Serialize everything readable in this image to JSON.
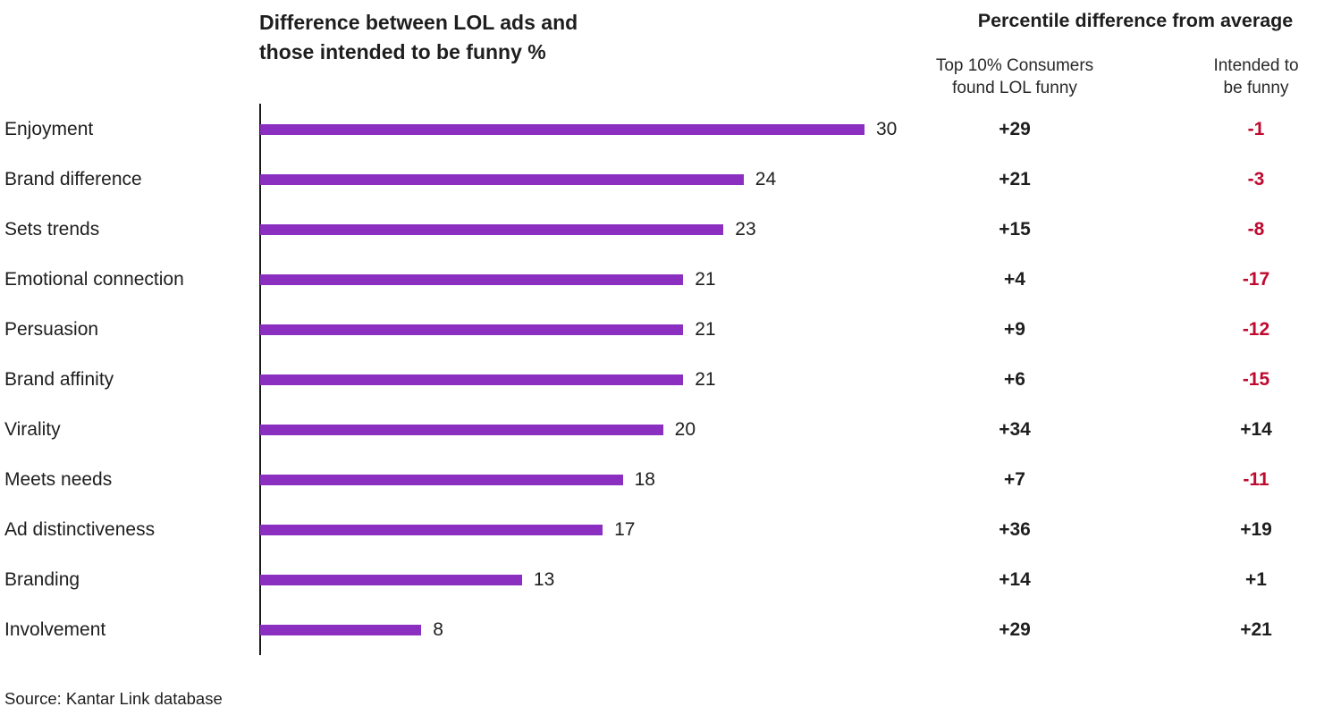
{
  "titles": {
    "left": "Difference between LOL ads and\nthose intended to be funny %",
    "right": "Percentile difference from average",
    "col1": "Top 10% Consumers\nfound LOL funny",
    "col2": "Intended to\nbe funny"
  },
  "source": "Source: Kantar Link database",
  "colors": {
    "bar": "#8A2FC0",
    "negative": "#BE0A2F",
    "text": "#1F1E1E"
  },
  "chart_data": {
    "type": "bar",
    "orientation": "horizontal",
    "title": "Difference between LOL ads and those intended to be funny %",
    "categories": [
      "Enjoyment",
      "Brand difference",
      "Sets trends",
      "Emotional connection",
      "Persuasion",
      "Brand affinity",
      "Virality",
      "Meets needs",
      "Ad distinctiveness",
      "Branding",
      "Involvement"
    ],
    "series": [
      {
        "name": "Difference between LOL ads and those intended to be funny %",
        "values": [
          30,
          24,
          23,
          21,
          21,
          21,
          20,
          18,
          17,
          13,
          8
        ]
      },
      {
        "name": "Top 10% Consumers found LOL funny",
        "values": [
          29,
          21,
          15,
          4,
          9,
          6,
          34,
          7,
          36,
          14,
          29
        ]
      },
      {
        "name": "Intended to be funny",
        "values": [
          -1,
          -3,
          -8,
          -17,
          -12,
          -15,
          14,
          -11,
          19,
          1,
          21
        ]
      }
    ],
    "xlim": [
      0,
      30
    ],
    "grid": false,
    "legend": "none",
    "value_labels": true
  }
}
